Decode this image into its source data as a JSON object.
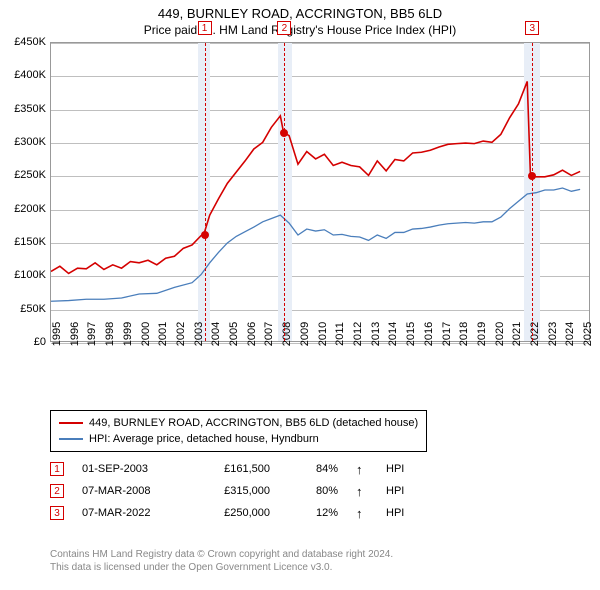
{
  "title": "449, BURNLEY ROAD, ACCRINGTON, BB5 6LD",
  "subtitle": "Price paid vs. HM Land Registry's House Price Index (HPI)",
  "chart": {
    "x_years": [
      1995,
      1996,
      1997,
      1998,
      1999,
      2000,
      2001,
      2002,
      2003,
      2004,
      2005,
      2006,
      2007,
      2008,
      2009,
      2010,
      2011,
      2012,
      2013,
      2014,
      2015,
      2016,
      2017,
      2018,
      2019,
      2020,
      2021,
      2022,
      2023,
      2024,
      2025
    ],
    "x_min": 1995,
    "x_max": 2025.5,
    "y_min": 0,
    "y_max": 450000,
    "y_ticks": [
      0,
      50000,
      100000,
      150000,
      200000,
      250000,
      300000,
      350000,
      400000,
      450000
    ],
    "y_tick_labels": [
      "£0",
      "£50K",
      "£100K",
      "£150K",
      "£200K",
      "£250K",
      "£300K",
      "£350K",
      "£400K",
      "£450K"
    ],
    "bands": [
      {
        "from": 2003.3,
        "to": 2004.0,
        "color": "#e8eef7"
      },
      {
        "from": 2007.8,
        "to": 2008.6,
        "color": "#e8eef7"
      },
      {
        "from": 2021.7,
        "to": 2022.6,
        "color": "#e8eef7"
      }
    ],
    "series": [
      {
        "name": "449, BURNLEY ROAD, ACCRINGTON, BB5 6LD (detached house)",
        "color": "#d40000",
        "width": 1.6,
        "points": [
          [
            1995,
            105000
          ],
          [
            1995.5,
            113000
          ],
          [
            1996,
            102000
          ],
          [
            1996.5,
            110000
          ],
          [
            1997,
            109000
          ],
          [
            1997.5,
            118000
          ],
          [
            1998,
            108000
          ],
          [
            1998.5,
            115000
          ],
          [
            1999,
            110000
          ],
          [
            1999.5,
            120000
          ],
          [
            2000,
            118000
          ],
          [
            2000.5,
            122000
          ],
          [
            2001,
            115000
          ],
          [
            2001.5,
            125000
          ],
          [
            2002,
            128000
          ],
          [
            2002.5,
            140000
          ],
          [
            2003,
            145000
          ],
          [
            2003.5,
            159000
          ],
          [
            2003.67,
            161500
          ],
          [
            2004,
            190000
          ],
          [
            2004.5,
            215000
          ],
          [
            2005,
            238000
          ],
          [
            2005.5,
            255000
          ],
          [
            2006,
            272000
          ],
          [
            2006.5,
            290000
          ],
          [
            2007,
            300000
          ],
          [
            2007.5,
            323000
          ],
          [
            2008,
            340000
          ],
          [
            2008.18,
            315000
          ],
          [
            2008.5,
            310000
          ],
          [
            2009,
            267000
          ],
          [
            2009.5,
            286000
          ],
          [
            2010,
            275000
          ],
          [
            2010.5,
            282000
          ],
          [
            2011,
            265000
          ],
          [
            2011.5,
            270000
          ],
          [
            2012,
            265000
          ],
          [
            2012.5,
            263000
          ],
          [
            2013,
            250000
          ],
          [
            2013.5,
            272000
          ],
          [
            2014,
            257000
          ],
          [
            2014.5,
            274000
          ],
          [
            2015,
            272000
          ],
          [
            2015.5,
            284000
          ],
          [
            2016,
            285000
          ],
          [
            2016.5,
            288000
          ],
          [
            2017,
            293000
          ],
          [
            2017.5,
            297000
          ],
          [
            2018,
            298000
          ],
          [
            2018.5,
            299000
          ],
          [
            2019,
            298000
          ],
          [
            2019.5,
            302000
          ],
          [
            2020,
            300000
          ],
          [
            2020.5,
            312000
          ],
          [
            2021,
            337000
          ],
          [
            2021.5,
            358000
          ],
          [
            2022,
            392000
          ],
          [
            2022.18,
            250000
          ],
          [
            2022.5,
            248000
          ],
          [
            2023,
            248000
          ],
          [
            2023.5,
            251000
          ],
          [
            2024,
            258000
          ],
          [
            2024.5,
            250000
          ],
          [
            2025,
            256000
          ]
        ]
      },
      {
        "name": "HPI: Average price, detached house, Hyndburn",
        "color": "#4a7ebb",
        "width": 1.3,
        "points": [
          [
            1995,
            60000
          ],
          [
            1996,
            61000
          ],
          [
            1997,
            63000
          ],
          [
            1998,
            63000
          ],
          [
            1999,
            65000
          ],
          [
            2000,
            71000
          ],
          [
            2001,
            72000
          ],
          [
            2002,
            81000
          ],
          [
            2003,
            88000
          ],
          [
            2003.5,
            100000
          ],
          [
            2004,
            118000
          ],
          [
            2004.5,
            134000
          ],
          [
            2005,
            148000
          ],
          [
            2005.5,
            158000
          ],
          [
            2006,
            165000
          ],
          [
            2006.5,
            172000
          ],
          [
            2007,
            180000
          ],
          [
            2007.5,
            185000
          ],
          [
            2008,
            190000
          ],
          [
            2008.5,
            178000
          ],
          [
            2009,
            160000
          ],
          [
            2009.5,
            169000
          ],
          [
            2010,
            166000
          ],
          [
            2010.5,
            168000
          ],
          [
            2011,
            160000
          ],
          [
            2011.5,
            161000
          ],
          [
            2012,
            158000
          ],
          [
            2012.5,
            157000
          ],
          [
            2013,
            152000
          ],
          [
            2013.5,
            160000
          ],
          [
            2014,
            155000
          ],
          [
            2014.5,
            164000
          ],
          [
            2015,
            164000
          ],
          [
            2015.5,
            169000
          ],
          [
            2016,
            170000
          ],
          [
            2016.5,
            172000
          ],
          [
            2017,
            175000
          ],
          [
            2017.5,
            177000
          ],
          [
            2018,
            178000
          ],
          [
            2018.5,
            179000
          ],
          [
            2019,
            178000
          ],
          [
            2019.5,
            180000
          ],
          [
            2020,
            180000
          ],
          [
            2020.5,
            187000
          ],
          [
            2021,
            200000
          ],
          [
            2021.5,
            211000
          ],
          [
            2022,
            222000
          ],
          [
            2022.5,
            224000
          ],
          [
            2023,
            228000
          ],
          [
            2023.5,
            228000
          ],
          [
            2024,
            231000
          ],
          [
            2024.5,
            226000
          ],
          [
            2025,
            229000
          ]
        ]
      }
    ],
    "markers": [
      {
        "id": "1",
        "x": 2003.67,
        "y": 161500,
        "color": "#d40000"
      },
      {
        "id": "2",
        "x": 2008.18,
        "y": 315000,
        "color": "#d40000"
      },
      {
        "id": "3",
        "x": 2022.18,
        "y": 250000,
        "color": "#d40000"
      }
    ],
    "grid_color": "#bfbfbf",
    "background": "#ffffff",
    "border_color": "#999999"
  },
  "legend": {
    "items": [
      {
        "color": "#d40000",
        "label": "449, BURNLEY ROAD, ACCRINGTON, BB5 6LD (detached house)"
      },
      {
        "color": "#4a7ebb",
        "label": "HPI: Average price, detached house, Hyndburn"
      }
    ]
  },
  "sales": [
    {
      "id": "1",
      "color": "#d40000",
      "date": "01-SEP-2003",
      "price": "£161,500",
      "pct": "84%",
      "arrow": "↑",
      "cmp": "HPI"
    },
    {
      "id": "2",
      "color": "#d40000",
      "date": "07-MAR-2008",
      "price": "£315,000",
      "pct": "80%",
      "arrow": "↑",
      "cmp": "HPI"
    },
    {
      "id": "3",
      "color": "#d40000",
      "date": "07-MAR-2022",
      "price": "£250,000",
      "pct": "12%",
      "arrow": "↑",
      "cmp": "HPI"
    }
  ],
  "footer": {
    "line1": "Contains HM Land Registry data © Crown copyright and database right 2024.",
    "line2": "This data is licensed under the Open Government Licence v3.0."
  }
}
